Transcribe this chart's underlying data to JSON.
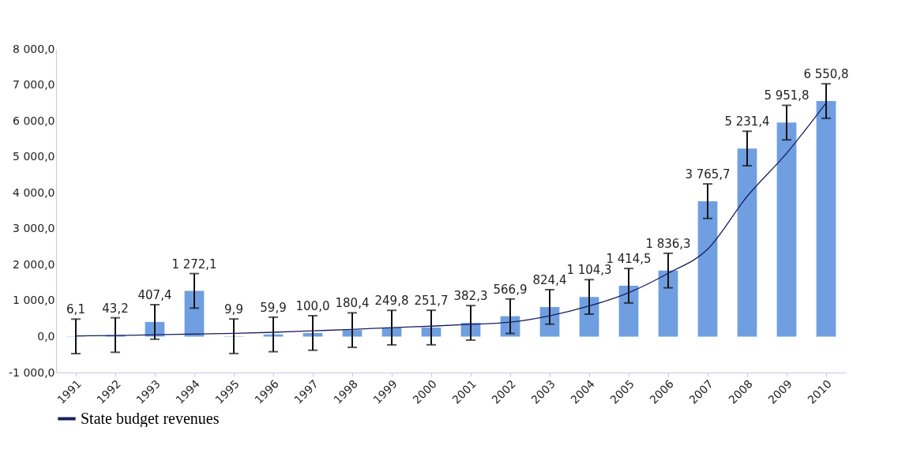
{
  "chart_data": {
    "type": "bar",
    "categories": [
      "1991",
      "1992",
      "1993",
      "1994",
      "1995",
      "1996",
      "1997",
      "1998",
      "1999",
      "2000",
      "2001",
      "2002",
      "2003",
      "2004",
      "2005",
      "2006",
      "2007",
      "2008",
      "2009",
      "2010"
    ],
    "series": [
      {
        "color": "#6f9fe0",
        "values": [
          6.1,
          43.2,
          407.4,
          1272.1,
          9.9,
          59.9,
          100.0,
          180.4,
          249.8,
          251.7,
          382.3,
          566.9,
          824.4,
          1104.3,
          1414.5,
          1836.3,
          3765.7,
          5231.4,
          5951.8,
          6550.8
        ],
        "errors": [
          480,
          480,
          480,
          480,
          480,
          480,
          480,
          480,
          480,
          480,
          480,
          480,
          480,
          480,
          480,
          480,
          480,
          480,
          480,
          480
        ],
        "value_labels": [
          "6,1",
          "43,2",
          "407,4",
          "1 272,1",
          "9,9",
          "59,9",
          "100,0",
          "180,4",
          "249,8",
          "251,7",
          "382,3",
          "566,9",
          "824,4",
          "1 104,3",
          "1 414,5",
          "1 836,3",
          "3 765,7",
          "5 231,4",
          "5 951,8",
          "6 550,8"
        ]
      },
      {
        "type": "line",
        "name": "State budget revenues",
        "color": "#1a1f5e",
        "values": [
          20,
          30,
          50,
          70,
          90,
          120,
          160,
          200,
          250,
          290,
          340,
          400,
          580,
          850,
          1220,
          1760,
          2430,
          3900,
          5100,
          6500
        ]
      }
    ],
    "ylim": [
      -1000,
      8000
    ],
    "yticks": [
      {
        "value": -1000,
        "label": "-1 000,0"
      },
      {
        "value": 0,
        "label": "0,0"
      },
      {
        "value": 1000,
        "label": "1 000,0"
      },
      {
        "value": 2000,
        "label": "2 000,0"
      },
      {
        "value": 3000,
        "label": "3 000,0"
      },
      {
        "value": 4000,
        "label": "4 000,0"
      },
      {
        "value": 5000,
        "label": "5 000,0"
      },
      {
        "value": 6000,
        "label": "6 000,0"
      },
      {
        "value": 7000,
        "label": "7 000,0"
      },
      {
        "value": 8000,
        "label": "8 000,0"
      }
    ],
    "grid": false,
    "legend": "bottom"
  }
}
